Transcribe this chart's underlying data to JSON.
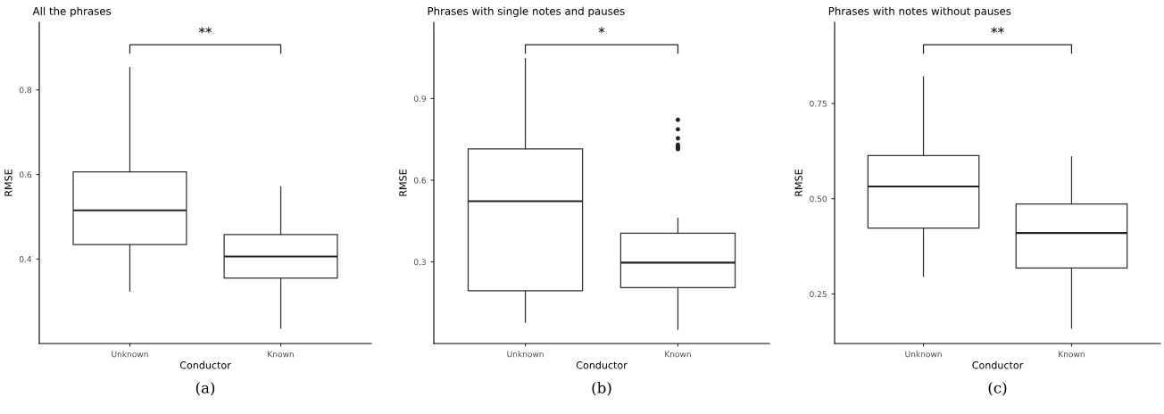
{
  "chart_data": [
    {
      "type": "box",
      "title": "All the phrases",
      "xlabel": "Conductor",
      "ylabel": "RMSE",
      "categories": [
        "Unknown",
        "Known"
      ],
      "ylim": [
        0.2,
        0.96
      ],
      "yticks": [
        0.4,
        0.6,
        0.8
      ],
      "grid": false,
      "legend": false,
      "annotations": [
        "**",
        "(a)"
      ],
      "boxes": [
        {
          "low": 0.324,
          "q1": 0.434,
          "median": 0.515,
          "q3": 0.606,
          "high": 0.853
        },
        {
          "low": 0.236,
          "q1": 0.355,
          "median": 0.406,
          "q3": 0.458,
          "high": 0.571
        }
      ]
    },
    {
      "type": "box",
      "title": "Phrases with single notes and pauses",
      "xlabel": "Conductor",
      "ylabel": "RMSE",
      "categories": [
        "Unknown",
        "Known"
      ],
      "ylim": [
        0.0,
        1.18
      ],
      "yticks": [
        0.3,
        0.6,
        0.9
      ],
      "grid": false,
      "legend": false,
      "annotations": [
        "*",
        "(b)"
      ],
      "boxes": [
        {
          "low": 0.078,
          "q1": 0.194,
          "median": 0.523,
          "q3": 0.715,
          "high": 1.047
        },
        {
          "low": 0.052,
          "q1": 0.205,
          "median": 0.297,
          "q3": 0.405,
          "high": 0.46,
          "outliers": [
            0.822,
            0.787,
            0.754,
            0.73,
            0.724,
            0.719,
            0.714
          ]
        }
      ]
    },
    {
      "type": "box",
      "title": "Phrases with notes without pauses",
      "xlabel": "Conductor",
      "ylabel": "RMSE",
      "categories": [
        "Unknown",
        "Known"
      ],
      "ylim": [
        0.12,
        0.963
      ],
      "yticks": [
        0.25,
        {
          "value": 0.5,
          "label": "0.50"
        },
        0.75
      ],
      "grid": false,
      "legend": false,
      "annotations": [
        "**",
        "(c)"
      ],
      "boxes": [
        {
          "low": 0.296,
          "q1": 0.423,
          "median": 0.532,
          "q3": 0.613,
          "high": 0.82
        },
        {
          "low": 0.16,
          "q1": 0.318,
          "median": 0.41,
          "q3": 0.486,
          "high": 0.61
        }
      ]
    }
  ]
}
